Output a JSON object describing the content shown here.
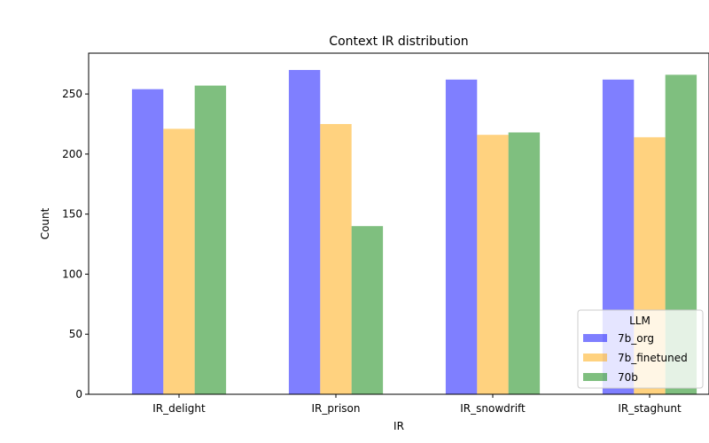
{
  "chart_data": {
    "type": "bar",
    "title": "Context IR distribution",
    "xlabel": "IR",
    "ylabel": "Count",
    "categories": [
      "IR_delight",
      "IR_prison",
      "IR_snowdrift",
      "IR_staghunt"
    ],
    "series": [
      {
        "name": "7b_org",
        "values": [
          254,
          270,
          262,
          262
        ],
        "color": "#0000ff"
      },
      {
        "name": "7b_finetuned",
        "values": [
          221,
          225,
          216,
          214
        ],
        "color": "#ffa500"
      },
      {
        "name": "70b",
        "values": [
          257,
          140,
          218,
          266
        ],
        "color": "#008000"
      }
    ],
    "bar_alpha": 0.5,
    "ylim": [
      0,
      284
    ],
    "yticks": [
      0,
      50,
      100,
      150,
      200,
      250
    ],
    "grid": false,
    "legend": {
      "title": "LLM",
      "placement": "lower-right"
    }
  }
}
